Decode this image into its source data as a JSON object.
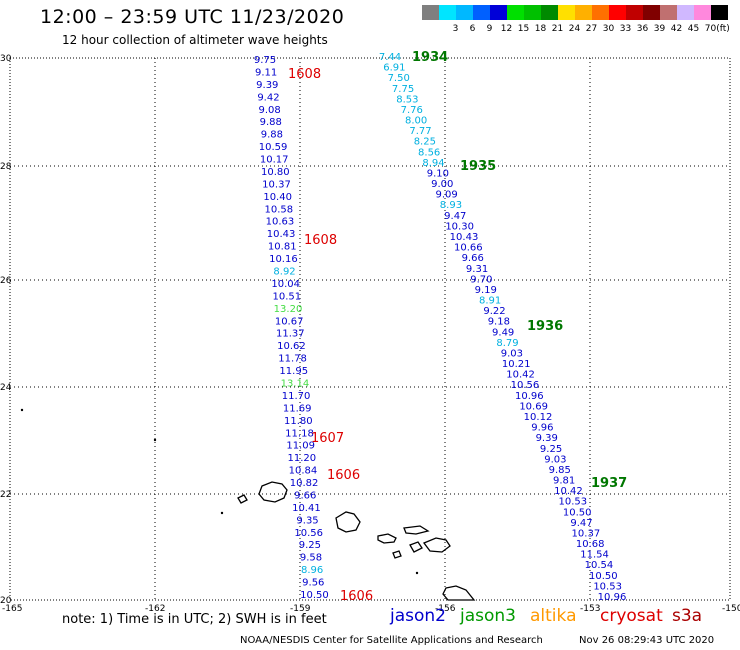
{
  "header": {
    "title": "12:00 – 23:59 UTC 11/23/2020",
    "subtitle": "12 hour collection of altimeter wave heights"
  },
  "legend": {
    "unit": "(ft)",
    "swatches": [
      {
        "label": "",
        "color": "#7f7f7f"
      },
      {
        "label": "3",
        "color": "#00e5ff"
      },
      {
        "label": "6",
        "color": "#00b8ff"
      },
      {
        "label": "9",
        "color": "#0060ff"
      },
      {
        "label": "12",
        "color": "#0000d8"
      },
      {
        "label": "15",
        "color": "#00e000"
      },
      {
        "label": "18",
        "color": "#00c000"
      },
      {
        "label": "21",
        "color": "#008a00"
      },
      {
        "label": "24",
        "color": "#ffe000"
      },
      {
        "label": "27",
        "color": "#ffb000"
      },
      {
        "label": "30",
        "color": "#ff7000"
      },
      {
        "label": "33",
        "color": "#ff0000"
      },
      {
        "label": "36",
        "color": "#c00000"
      },
      {
        "label": "39",
        "color": "#800000"
      },
      {
        "label": "42",
        "color": "#c07070"
      },
      {
        "label": "45",
        "color": "#d0b8ff"
      },
      {
        "label": "70",
        "color": "#ff88dd"
      },
      {
        "label": "",
        "color": "#000000"
      }
    ]
  },
  "axes": {
    "lat_labels": [
      "30",
      "28",
      "26",
      "24",
      "22",
      "20"
    ],
    "lon_labels": [
      "-165",
      "-162",
      "-159",
      "-156",
      "-153",
      "-150"
    ]
  },
  "tracks": {
    "jason2": {
      "color": "#0000cc",
      "values": [
        "9.75",
        "9.11",
        "9.39",
        "9.42",
        "9.08",
        "9.88",
        "9.88",
        "10.59",
        "10.17",
        "10.80",
        "10.37",
        "10.40",
        "10.58",
        "10.63",
        "10.43",
        "10.81",
        "10.16",
        "8.92",
        "10.04",
        "10.51",
        "13.20",
        "10.67",
        "11.37",
        "10.62",
        "11.78",
        "11.95",
        "13.14",
        "11.70",
        "11.69",
        "11.80",
        "11.18",
        "11.09",
        "11.20",
        "10.84",
        "10.82",
        "9.66",
        "10.41",
        "9.35",
        "10.56",
        "9.25",
        "9.58",
        "8.96",
        "9.56",
        "10.50"
      ]
    },
    "jason3": {
      "color": "#0000cc",
      "values": [
        "7.44",
        "6.91",
        "7.50",
        "7.75",
        "8.53",
        "7.76",
        "8.00",
        "7.77",
        "8.25",
        "8.56",
        "8.94",
        "9.10",
        "9.00",
        "9.09",
        "8.93",
        "9.47",
        "10.30",
        "10.43",
        "10.66",
        "9.66",
        "9.31",
        "9.70",
        "9.19",
        "8.91",
        "9.22",
        "9.18",
        "9.49",
        "8.79",
        "9.03",
        "10.21",
        "10.42",
        "10.56",
        "10.96",
        "10.69",
        "10.12",
        "9.96",
        "9.39",
        "9.25",
        "9.03",
        "9.85",
        "9.81",
        "10.42",
        "10.53",
        "10.50",
        "9.47",
        "10.37",
        "10.68",
        "11.54",
        "10.54",
        "10.50",
        "10.53",
        "10.96"
      ]
    },
    "jason2_times": [
      {
        "label": "1608",
        "color": "#dd0000"
      },
      {
        "label": "1608",
        "color": "#dd0000"
      },
      {
        "label": "1607",
        "color": "#dd0000"
      },
      {
        "label": "1606",
        "color": "#dd0000"
      },
      {
        "label": "1606",
        "color": "#dd0000"
      }
    ],
    "jason3_times": [
      {
        "label": "1934",
        "color": "#007700"
      },
      {
        "label": "1935",
        "color": "#007700"
      },
      {
        "label": "1936",
        "color": "#007700"
      },
      {
        "label": "1937",
        "color": "#007700"
      }
    ]
  },
  "note": "note: 1) Time is in UTC; 2) SWH is in feet",
  "satellites": [
    {
      "name": "jason2",
      "color": "#0000cc"
    },
    {
      "name": "jason3",
      "color": "#009900"
    },
    {
      "name": "altika",
      "color": "#ff9900"
    },
    {
      "name": "cryosat",
      "color": "#dd0000"
    },
    {
      "name": "s3a",
      "color": "#aa0000"
    }
  ],
  "footer": {
    "credit": "NOAA/NESDIS Center for Satellite Applications and Research",
    "timestamp": "Nov 26 08:29:43 UTC 2020"
  }
}
